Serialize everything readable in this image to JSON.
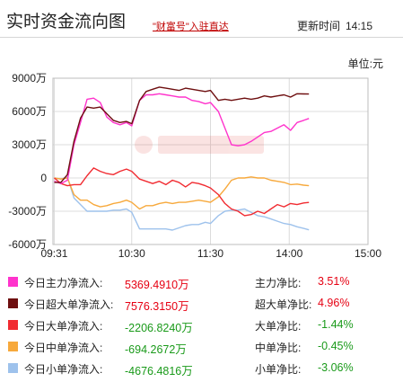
{
  "header": {
    "title": "实时资金流向图",
    "promo_link": "\"财富号\"入驻直达",
    "updated_label": "更新时间",
    "updated_time": "14:15"
  },
  "unit_label": "单位:元",
  "chart_data": {
    "type": "line",
    "x_ticks": [
      "09:31",
      "10:30",
      "11:30",
      "14:00",
      "15:00"
    ],
    "y_ticks": [
      "9000万",
      "6000万",
      "3000万",
      "0",
      "-3000万",
      "-6000万"
    ],
    "ylim": [
      -6000,
      9000
    ],
    "y_unit": "万",
    "grid": true,
    "x_sample_times": [
      "09:31",
      "09:36",
      "09:41",
      "09:46",
      "09:51",
      "09:56",
      "10:01",
      "10:06",
      "10:11",
      "10:16",
      "10:21",
      "10:26",
      "10:30",
      "10:36",
      "10:41",
      "10:46",
      "10:51",
      "10:56",
      "11:01",
      "11:06",
      "11:11",
      "11:16",
      "11:21",
      "11:26",
      "11:30",
      "13:06",
      "13:11",
      "13:16",
      "13:21",
      "13:26",
      "13:31",
      "13:36",
      "13:41",
      "13:46",
      "13:51",
      "13:56",
      "14:01",
      "14:06",
      "14:11",
      "14:15"
    ],
    "series": [
      {
        "name": "今日主力净流入",
        "color": "#ff33cc",
        "values": [
          -300,
          -500,
          -200,
          3000,
          5000,
          7100,
          7200,
          6800,
          5500,
          5000,
          4800,
          5000,
          4700,
          7000,
          7500,
          7500,
          7600,
          7500,
          7400,
          7300,
          7300,
          7000,
          6900,
          6700,
          6800,
          6000,
          4500,
          3000,
          2900,
          3000,
          3300,
          3700,
          4100,
          4200,
          4500,
          4800,
          4300,
          5000,
          5200,
          5369
        ]
      },
      {
        "name": "今日超大单净流入",
        "color": "#6e0f10",
        "values": [
          -400,
          -400,
          300,
          3300,
          5400,
          6400,
          6300,
          6400,
          5800,
          5200,
          5000,
          5100,
          4900,
          7000,
          7800,
          8000,
          8200,
          8100,
          8000,
          7900,
          8100,
          8000,
          7900,
          7800,
          7900,
          7000,
          7100,
          7000,
          7100,
          7200,
          7100,
          7200,
          7400,
          7300,
          7400,
          7500,
          7300,
          7600,
          7580,
          7576
        ]
      },
      {
        "name": "今日大单净流入",
        "color": "#f12b31",
        "values": [
          0,
          -500,
          -700,
          -600,
          -600,
          200,
          900,
          600,
          400,
          300,
          600,
          800,
          600,
          -100,
          -300,
          -500,
          -300,
          -600,
          -200,
          -400,
          -800,
          -400,
          -500,
          -700,
          -900,
          -1500,
          -2300,
          -2800,
          -3000,
          -3400,
          -3300,
          -3000,
          -3200,
          -2800,
          -2400,
          -2600,
          -2300,
          -2400,
          -2250,
          -2207
        ]
      },
      {
        "name": "今日中单净流入",
        "color": "#f7a93c",
        "values": [
          0,
          -100,
          0,
          -1500,
          -2000,
          -2000,
          -2400,
          -2600,
          -2500,
          -2300,
          -2200,
          -2000,
          -2200,
          -2800,
          -2500,
          -2500,
          -2300,
          -2200,
          -2300,
          -2200,
          -2200,
          -2100,
          -2000,
          -2100,
          -2200,
          -1700,
          -1000,
          -200,
          0,
          0,
          100,
          0,
          0,
          -200,
          -300,
          -400,
          -600,
          -550,
          -650,
          -694
        ]
      },
      {
        "name": "今日小单净流入",
        "color": "#9ec2ec",
        "values": [
          0,
          -100,
          100,
          -1800,
          -2400,
          -3000,
          -3000,
          -3000,
          -3000,
          -2900,
          -2900,
          -2800,
          -3100,
          -4600,
          -4600,
          -4600,
          -4600,
          -4600,
          -4700,
          -4500,
          -4300,
          -4200,
          -4200,
          -4000,
          -4100,
          -3400,
          -3000,
          -2900,
          -2900,
          -2800,
          -3100,
          -3400,
          -3500,
          -3700,
          -3900,
          -4100,
          -4200,
          -4400,
          -4550,
          -4677
        ]
      }
    ]
  },
  "legend": [
    {
      "label": "今日主力净流入:",
      "value": "5369.4910万",
      "ratio_label": "主力净比:",
      "ratio": "3.51%",
      "color": "#ff33cc",
      "sign": "pos"
    },
    {
      "label": "今日超大单净流入:",
      "value": "7576.3150万",
      "ratio_label": "超大单净比:",
      "ratio": "4.96%",
      "color": "#6e0f10",
      "sign": "pos"
    },
    {
      "label": "今日大单净流入:",
      "value": "-2206.8240万",
      "ratio_label": "大单净比:",
      "ratio": "-1.44%",
      "color": "#f12b31",
      "sign": "neg"
    },
    {
      "label": "今日中单净流入:",
      "value": "-694.2672万",
      "ratio_label": "中单净比:",
      "ratio": "-0.45%",
      "color": "#f7a93c",
      "sign": "neg"
    },
    {
      "label": "今日小单净流入:",
      "value": "-4676.4816万",
      "ratio_label": "小单净比:",
      "ratio": "-3.06%",
      "color": "#9ec2ec",
      "sign": "neg"
    }
  ]
}
